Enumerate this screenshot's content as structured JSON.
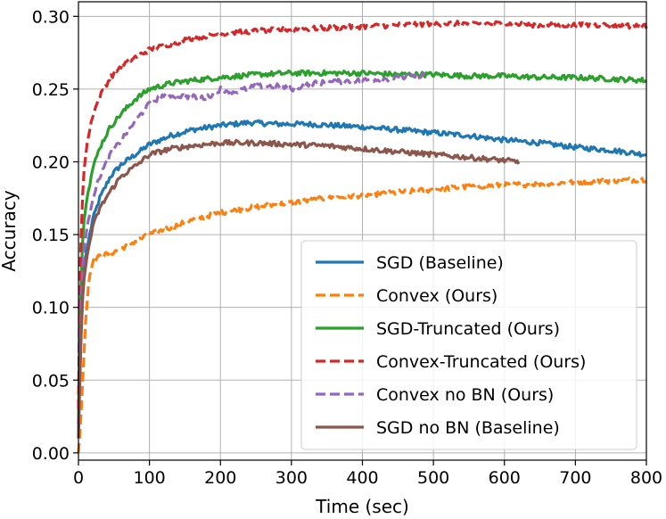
{
  "chart_data": {
    "type": "line",
    "title": "",
    "xlabel": "Time (sec)",
    "ylabel": "Accuracy",
    "xlim": [
      0,
      800
    ],
    "ylim": [
      -0.005,
      0.31
    ],
    "xticks": [
      0,
      100,
      200,
      300,
      400,
      500,
      600,
      700,
      800
    ],
    "yticks": [
      0.0,
      0.05,
      0.1,
      0.15,
      0.2,
      0.25,
      0.3
    ],
    "xtick_labels": [
      "0",
      "100",
      "200",
      "300",
      "400",
      "500",
      "600",
      "700",
      "800"
    ],
    "ytick_labels": [
      "0.00",
      "0.05",
      "0.10",
      "0.15",
      "0.20",
      "0.25",
      "0.30"
    ],
    "grid": true,
    "legend_position": "lower-right",
    "series": [
      {
        "name": "SGD (Baseline)",
        "color": "#1f77b4",
        "dash": "solid",
        "x": [
          0,
          2,
          5,
          8,
          12,
          20,
          30,
          45,
          60,
          80,
          100,
          130,
          160,
          200,
          240,
          280,
          320,
          360,
          400,
          450,
          500,
          550,
          600,
          650,
          700,
          750,
          800
        ],
        "y": [
          0.01,
          0.06,
          0.115,
          0.13,
          0.14,
          0.16,
          0.175,
          0.19,
          0.198,
          0.205,
          0.212,
          0.218,
          0.222,
          0.225,
          0.227,
          0.226,
          0.226,
          0.225,
          0.224,
          0.222,
          0.22,
          0.218,
          0.215,
          0.213,
          0.21,
          0.208,
          0.205
        ]
      },
      {
        "name": "Convex (Ours)",
        "color": "#ff7f0e",
        "dash": "dashed",
        "x": [
          0,
          3,
          6,
          10,
          15,
          20,
          30,
          50,
          70,
          100,
          130,
          160,
          200,
          250,
          300,
          350,
          400,
          450,
          500,
          550,
          600,
          650,
          700,
          750,
          800
        ],
        "y": [
          0.0,
          0.02,
          0.05,
          0.09,
          0.12,
          0.132,
          0.135,
          0.138,
          0.143,
          0.15,
          0.155,
          0.16,
          0.165,
          0.169,
          0.172,
          0.175,
          0.177,
          0.179,
          0.181,
          0.183,
          0.184,
          0.185,
          0.186,
          0.187,
          0.188
        ]
      },
      {
        "name": "SGD-Truncated (Ours)",
        "color": "#2ca02c",
        "dash": "solid",
        "x": [
          0,
          2,
          5,
          8,
          12,
          20,
          30,
          45,
          60,
          80,
          100,
          130,
          160,
          200,
          250,
          300,
          350,
          400,
          450,
          500,
          550,
          600,
          650,
          700,
          750,
          800
        ],
        "y": [
          0.02,
          0.09,
          0.14,
          0.16,
          0.175,
          0.195,
          0.21,
          0.224,
          0.233,
          0.243,
          0.25,
          0.254,
          0.256,
          0.258,
          0.26,
          0.261,
          0.261,
          0.261,
          0.26,
          0.26,
          0.259,
          0.259,
          0.258,
          0.258,
          0.257,
          0.256
        ]
      },
      {
        "name": "Convex-Truncated (Ours)",
        "color": "#d62728",
        "dash": "dashed",
        "x": [
          0,
          2,
          5,
          8,
          12,
          20,
          30,
          45,
          60,
          80,
          100,
          130,
          160,
          200,
          250,
          300,
          350,
          400,
          450,
          500,
          550,
          600,
          650,
          700,
          750,
          800
        ],
        "y": [
          0.03,
          0.12,
          0.17,
          0.195,
          0.212,
          0.232,
          0.245,
          0.258,
          0.266,
          0.272,
          0.277,
          0.281,
          0.285,
          0.288,
          0.29,
          0.291,
          0.292,
          0.293,
          0.294,
          0.295,
          0.295,
          0.295,
          0.294,
          0.294,
          0.294,
          0.293
        ]
      },
      {
        "name": "Convex no BN (Ours)",
        "color": "#9467bd",
        "dash": "dashed",
        "x": [
          0,
          2,
          5,
          8,
          12,
          20,
          30,
          45,
          60,
          80,
          100,
          120,
          150,
          180,
          200,
          220,
          250,
          280,
          300,
          330,
          360,
          400,
          430,
          460,
          490
        ],
        "y": [
          0.02,
          0.07,
          0.12,
          0.14,
          0.155,
          0.175,
          0.19,
          0.205,
          0.215,
          0.228,
          0.24,
          0.246,
          0.245,
          0.244,
          0.25,
          0.248,
          0.252,
          0.252,
          0.25,
          0.254,
          0.255,
          0.256,
          0.257,
          0.258,
          0.26
        ]
      },
      {
        "name": "SGD no BN (Baseline)",
        "color": "#8c564b",
        "dash": "solid",
        "x": [
          0,
          2,
          5,
          8,
          12,
          20,
          30,
          45,
          60,
          80,
          100,
          130,
          160,
          200,
          250,
          300,
          350,
          400,
          450,
          500,
          550,
          600,
          620
        ],
        "y": [
          0.01,
          0.05,
          0.1,
          0.12,
          0.135,
          0.155,
          0.168,
          0.18,
          0.19,
          0.197,
          0.205,
          0.209,
          0.211,
          0.213,
          0.213,
          0.212,
          0.211,
          0.209,
          0.207,
          0.205,
          0.203,
          0.201,
          0.2
        ]
      }
    ]
  }
}
